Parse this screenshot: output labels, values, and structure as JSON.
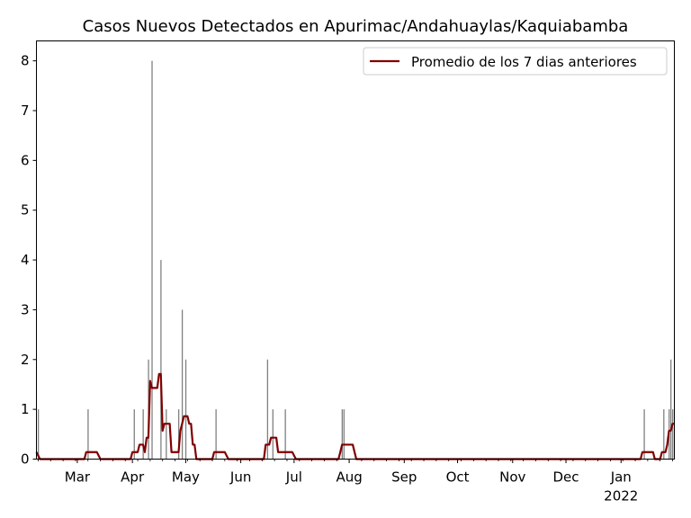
{
  "chart_data": {
    "type": "bar+line",
    "title": "Casos Nuevos Detectados en Apurimac/Andahuaylas/Kaquiabamba",
    "xlabel": "",
    "ylabel": "",
    "x_range": [
      "2021-02-06",
      "2022-01-31"
    ],
    "ylim": [
      0,
      8.4
    ],
    "y_ticks": [
      0,
      1,
      2,
      3,
      4,
      5,
      6,
      7,
      8
    ],
    "x_ticks": [
      {
        "date": "2021-03-01",
        "label": "Mar"
      },
      {
        "date": "2021-04-01",
        "label": "Apr"
      },
      {
        "date": "2021-05-01",
        "label": "May"
      },
      {
        "date": "2021-06-01",
        "label": "Jun"
      },
      {
        "date": "2021-07-01",
        "label": "Jul"
      },
      {
        "date": "2021-08-01",
        "label": "Aug"
      },
      {
        "date": "2021-09-01",
        "label": "Sep"
      },
      {
        "date": "2021-10-01",
        "label": "Oct"
      },
      {
        "date": "2021-11-01",
        "label": "Nov"
      },
      {
        "date": "2021-12-01",
        "label": "Dec"
      },
      {
        "date": "2022-01-01",
        "label": "Jan",
        "sublabel": "2022"
      }
    ],
    "grid": false,
    "legend": {
      "position": "top-right"
    },
    "colors": {
      "bars": "#808080",
      "line": "#800000"
    },
    "series": [
      {
        "type": "bar",
        "points": [
          [
            "2021-02-07",
            1
          ],
          [
            "2021-03-07",
            1
          ],
          [
            "2021-04-02",
            1
          ],
          [
            "2021-04-07",
            1
          ],
          [
            "2021-04-10",
            2
          ],
          [
            "2021-04-12",
            8
          ],
          [
            "2021-04-17",
            4
          ],
          [
            "2021-04-20",
            1
          ],
          [
            "2021-04-27",
            1
          ],
          [
            "2021-04-29",
            3
          ],
          [
            "2021-05-01",
            2
          ],
          [
            "2021-05-18",
            1
          ],
          [
            "2021-06-16",
            2
          ],
          [
            "2021-06-19",
            1
          ],
          [
            "2021-06-26",
            1
          ],
          [
            "2021-07-28",
            1
          ],
          [
            "2021-07-29",
            1
          ],
          [
            "2022-01-14",
            1
          ],
          [
            "2022-01-25",
            1
          ],
          [
            "2022-01-28",
            1
          ],
          [
            "2022-01-29",
            2
          ],
          [
            "2022-01-30",
            1
          ]
        ]
      },
      {
        "type": "line",
        "name": "Promedio de los 7 dias anteriores",
        "points": [
          [
            "2021-02-06",
            0.14
          ],
          [
            "2021-02-08",
            0.0
          ],
          [
            "2021-03-05",
            0.0
          ],
          [
            "2021-03-06",
            0.14
          ],
          [
            "2021-03-12",
            0.14
          ],
          [
            "2021-03-14",
            0.0
          ],
          [
            "2021-03-31",
            0.0
          ],
          [
            "2021-04-01",
            0.14
          ],
          [
            "2021-04-04",
            0.14
          ],
          [
            "2021-04-05",
            0.29
          ],
          [
            "2021-04-07",
            0.29
          ],
          [
            "2021-04-08",
            0.14
          ],
          [
            "2021-04-09",
            0.43
          ],
          [
            "2021-04-10",
            0.43
          ],
          [
            "2021-04-11",
            1.57
          ],
          [
            "2021-04-12",
            1.43
          ],
          [
            "2021-04-15",
            1.43
          ],
          [
            "2021-04-16",
            1.71
          ],
          [
            "2021-04-17",
            1.71
          ],
          [
            "2021-04-18",
            0.57
          ],
          [
            "2021-04-19",
            0.71
          ],
          [
            "2021-04-22",
            0.71
          ],
          [
            "2021-04-23",
            0.14
          ],
          [
            "2021-04-27",
            0.14
          ],
          [
            "2021-04-28",
            0.57
          ],
          [
            "2021-04-29",
            0.71
          ],
          [
            "2021-04-30",
            0.86
          ],
          [
            "2021-05-02",
            0.86
          ],
          [
            "2021-05-03",
            0.71
          ],
          [
            "2021-05-04",
            0.71
          ],
          [
            "2021-05-05",
            0.29
          ],
          [
            "2021-05-06",
            0.29
          ],
          [
            "2021-05-07",
            0.0
          ],
          [
            "2021-05-16",
            0.0
          ],
          [
            "2021-05-17",
            0.14
          ],
          [
            "2021-05-23",
            0.14
          ],
          [
            "2021-05-25",
            0.0
          ],
          [
            "2021-06-14",
            0.0
          ],
          [
            "2021-06-15",
            0.29
          ],
          [
            "2021-06-17",
            0.29
          ],
          [
            "2021-06-18",
            0.43
          ],
          [
            "2021-06-21",
            0.43
          ],
          [
            "2021-06-22",
            0.14
          ],
          [
            "2021-06-30",
            0.14
          ],
          [
            "2021-07-02",
            0.0
          ],
          [
            "2021-07-26",
            0.0
          ],
          [
            "2021-07-27",
            0.14
          ],
          [
            "2021-07-28",
            0.29
          ],
          [
            "2021-08-03",
            0.29
          ],
          [
            "2021-08-05",
            0.0
          ],
          [
            "2022-01-12",
            0.0
          ],
          [
            "2022-01-13",
            0.14
          ],
          [
            "2022-01-19",
            0.14
          ],
          [
            "2022-01-20",
            0.0
          ],
          [
            "2022-01-23",
            0.0
          ],
          [
            "2022-01-24",
            0.14
          ],
          [
            "2022-01-26",
            0.14
          ],
          [
            "2022-01-27",
            0.29
          ],
          [
            "2022-01-28",
            0.57
          ],
          [
            "2022-01-29",
            0.57
          ],
          [
            "2022-01-30",
            0.71
          ],
          [
            "2022-01-31",
            0.71
          ]
        ]
      }
    ]
  }
}
